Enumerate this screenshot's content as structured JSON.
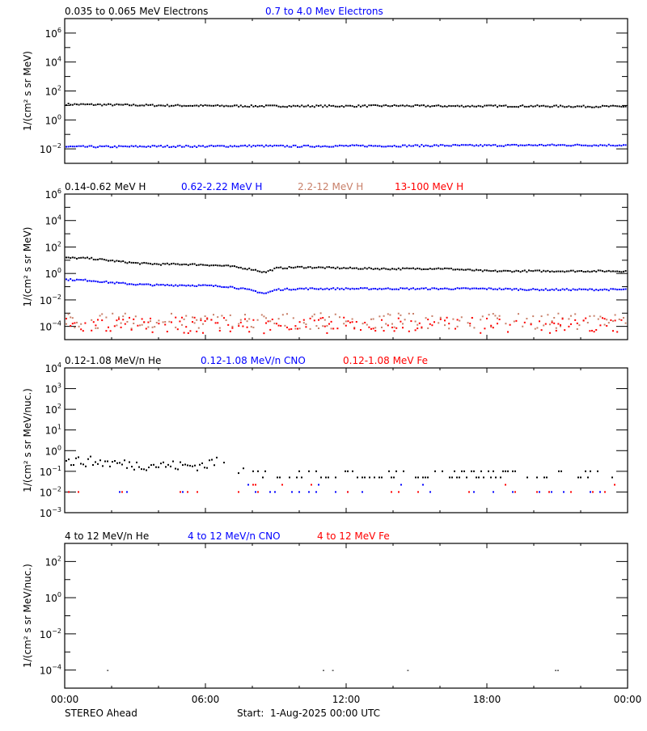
{
  "chart_data": [
    {
      "type": "scatter",
      "title": "",
      "ylabel": "1/(cm² s sr MeV)",
      "yscale": "log",
      "ylim": [
        0.001,
        10000000.0
      ],
      "yticks": [
        "10^6",
        "10^4",
        "10^2",
        "10^0",
        "10^-2"
      ],
      "legend": [
        {
          "label": "0.035 to 0.065 MeV Electrons",
          "color": "#000000"
        },
        {
          "label": "0.7 to 4.0 Mev Electrons",
          "color": "#0000ff"
        }
      ],
      "series": [
        {
          "name": "0.035 to 0.065 MeV Electrons",
          "color": "#000000",
          "x_hours": [
            0,
            2,
            4,
            6,
            8,
            10,
            12,
            14,
            16,
            18,
            20,
            22,
            24
          ],
          "values": [
            12,
            11,
            10,
            9.5,
            9,
            9,
            9,
            9.5,
            9,
            9,
            9,
            8.5,
            8.5
          ]
        },
        {
          "name": "0.7 to 4.0 Mev Electrons",
          "color": "#0000ff",
          "x_hours": [
            0,
            2,
            4,
            6,
            8,
            10,
            12,
            14,
            16,
            18,
            20,
            22,
            24
          ],
          "values": [
            0.014,
            0.014,
            0.015,
            0.015,
            0.016,
            0.015,
            0.016,
            0.016,
            0.017,
            0.017,
            0.018,
            0.018,
            0.018
          ]
        }
      ]
    },
    {
      "type": "scatter",
      "ylabel": "1/(cm² s sr MeV)",
      "yscale": "log",
      "ylim": [
        1e-05,
        1000000.0
      ],
      "yticks": [
        "10^6",
        "10^4",
        "10^2",
        "10^0",
        "10^-2",
        "10^-4"
      ],
      "legend": [
        {
          "label": "0.14-0.62 MeV H",
          "color": "#000000"
        },
        {
          "label": "0.62-2.22 MeV H",
          "color": "#0000ff"
        },
        {
          "label": "2.2-12 MeV H",
          "color": "#c87f68"
        },
        {
          "label": "13-100 MeV H",
          "color": "#ff0000"
        }
      ],
      "series": [
        {
          "name": "0.14-0.62 MeV H",
          "color": "#000000",
          "x_hours": [
            0,
            1,
            2,
            3,
            4,
            5,
            6,
            7,
            8,
            8.5,
            9,
            10,
            12,
            14,
            16,
            18,
            20,
            22,
            24
          ],
          "values": [
            15,
            14,
            9,
            6,
            5,
            5,
            4.5,
            3.5,
            2,
            1.2,
            2.5,
            3,
            2.5,
            2.2,
            2.4,
            1.5,
            1.5,
            1.5,
            1.5
          ]
        },
        {
          "name": "0.62-2.22 MeV H",
          "color": "#0000ff",
          "x_hours": [
            0,
            1,
            2,
            3,
            4,
            5,
            6,
            7,
            8,
            8.5,
            9,
            10,
            12,
            14,
            16,
            18,
            20,
            22,
            24
          ],
          "values": [
            0.35,
            0.3,
            0.2,
            0.15,
            0.13,
            0.13,
            0.12,
            0.1,
            0.05,
            0.03,
            0.06,
            0.07,
            0.07,
            0.07,
            0.07,
            0.07,
            0.06,
            0.06,
            0.06
          ]
        },
        {
          "name": "2.2-12 MeV H",
          "color": "#c87f68",
          "x_hours": [
            0,
            24
          ],
          "values": [
            0.00025,
            0.00025
          ]
        },
        {
          "name": "13-100 MeV H",
          "color": "#ff0000",
          "x_hours": [
            0,
            24
          ],
          "values": [
            0.00012,
            0.00012
          ]
        }
      ]
    },
    {
      "type": "scatter",
      "ylabel": "1/(cm² s sr MeV/nuc.)",
      "yscale": "log",
      "ylim": [
        0.001,
        10000.0
      ],
      "yticks": [
        "10^4",
        "10^3",
        "10^2",
        "10^1",
        "10^0",
        "10^-1",
        "10^-2",
        "10^-3"
      ],
      "legend": [
        {
          "label": "0.12-1.08 MeV/n He",
          "color": "#000000"
        },
        {
          "label": "0.12-1.08 MeV/n CNO",
          "color": "#0000ff"
        },
        {
          "label": "0.12-1.08 MeV Fe",
          "color": "#ff0000"
        }
      ],
      "series": [
        {
          "name": "0.12-1.08 MeV/n He",
          "color": "#000000",
          "x_hours": [
            0,
            1,
            2,
            3,
            4,
            5,
            6,
            6.3,
            8,
            12,
            16,
            20,
            24
          ],
          "values": [
            0.3,
            0.3,
            0.25,
            0.2,
            0.2,
            0.18,
            0.2,
            0.3,
            0.08,
            0.08,
            0.08,
            0.08,
            0.08
          ]
        },
        {
          "name": "0.12-1.08 MeV/n CNO",
          "color": "#0000ff",
          "x_hours": [
            0,
            24
          ],
          "values": [
            0.01,
            0.01
          ]
        },
        {
          "name": "0.12-1.08 MeV Fe",
          "color": "#ff0000",
          "x_hours": [
            0,
            24
          ],
          "values": [
            0.01,
            0.01
          ]
        }
      ]
    },
    {
      "type": "scatter",
      "ylabel": "1/(cm² s sr MeV/nuc.)",
      "yscale": "log",
      "ylim": [
        1e-05,
        1000.0
      ],
      "yticks": [
        "10^2",
        "10^0",
        "10^-2",
        "10^-4"
      ],
      "legend": [
        {
          "label": "4 to 12 MeV/n He",
          "color": "#000000"
        },
        {
          "label": "4 to 12 MeV/n CNO",
          "color": "#0000ff"
        },
        {
          "label": "4 to 12 MeV Fe",
          "color": "#ff0000"
        }
      ],
      "series": [
        {
          "name": "4 to 12 MeV/n He",
          "color": "#000000",
          "x_hours": [
            1.8,
            11,
            11.4,
            14.6,
            20.9,
            21
          ],
          "values": [
            0.0001,
            0.0001,
            0.0001,
            0.0001,
            0.0001,
            0.0001
          ]
        }
      ]
    }
  ],
  "xaxis": {
    "tick_labels": [
      "00:00",
      "06:00",
      "12:00",
      "18:00",
      "00:00"
    ],
    "range_hours": [
      0,
      24
    ]
  },
  "footer": {
    "spacecraft": "STEREO Ahead",
    "start": "Start:  1-Aug-2025 00:00 UTC"
  },
  "colors": {
    "black": "#000000",
    "blue": "#0000ff",
    "salmon": "#c87f68",
    "red": "#ff0000"
  }
}
